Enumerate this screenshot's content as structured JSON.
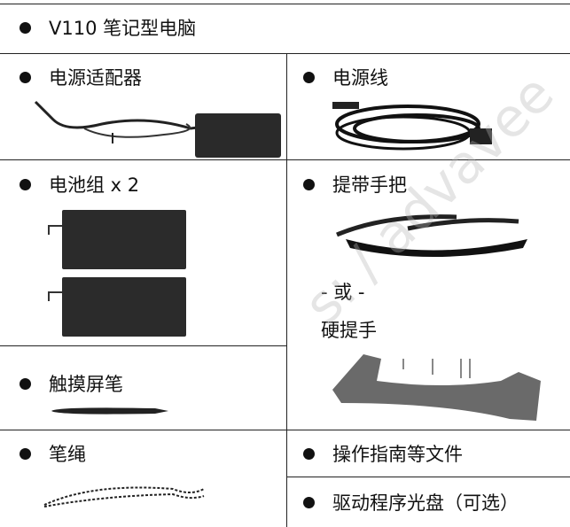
{
  "header": "V110 笔记型电脑",
  "items": [
    "电源适配器",
    "电源线",
    "电池组 x 2",
    "提带手把",
    "触摸屏笔",
    "笔绳",
    "操作指南等文件",
    "驱动程序光盘（可选）"
  ],
  "or_text": "- 或 -",
  "hard_handle": "硬提手",
  "watermark": "s: / advavee"
}
